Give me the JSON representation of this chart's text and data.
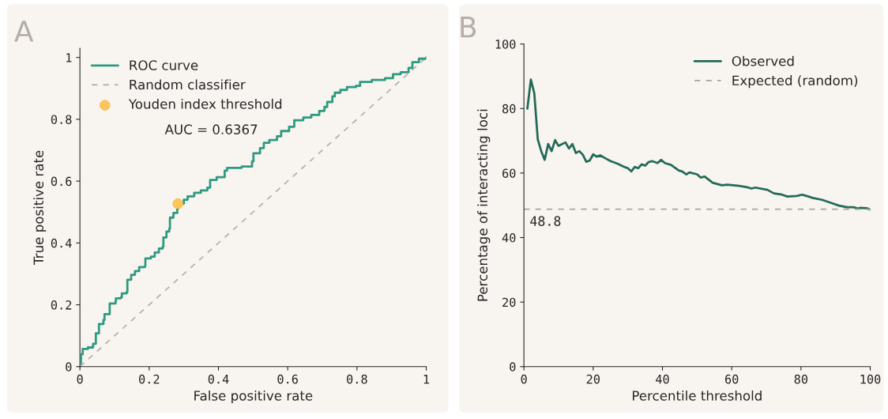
{
  "chart_data": [
    {
      "type": "step",
      "title": "A",
      "xlabel": "False positive rate",
      "ylabel": "True positive rate",
      "xlim": [
        0,
        1
      ],
      "ylim": [
        0,
        1.03
      ],
      "xticks": [
        0,
        0.2,
        0.4,
        0.6,
        0.8,
        1
      ],
      "yticks": [
        0,
        0.2,
        0.4,
        0.6,
        0.8,
        1
      ],
      "grid": false,
      "legend": "top left",
      "annotations": [
        "AUC = 0.6367"
      ],
      "series": [
        {
          "name": "ROC curve",
          "color": "#2e9a80",
          "line_style": "solid",
          "x": [
            0,
            0.003,
            0.008,
            0.023,
            0.038,
            0.046,
            0.055,
            0.068,
            0.071,
            0.083,
            0.086,
            0.103,
            0.104,
            0.118,
            0.121,
            0.135,
            0.137,
            0.148,
            0.159,
            0.171,
            0.188,
            0.189,
            0.205,
            0.216,
            0.228,
            0.239,
            0.241,
            0.25,
            0.258,
            0.26,
            0.27,
            0.281,
            0.283,
            0.3,
            0.311,
            0.33,
            0.349,
            0.368,
            0.376,
            0.395,
            0.418,
            0.425,
            0.467,
            0.497,
            0.501,
            0.52,
            0.531,
            0.547,
            0.569,
            0.581,
            0.604,
            0.619,
            0.645,
            0.668,
            0.691,
            0.706,
            0.714,
            0.729,
            0.736,
            0.752,
            0.771,
            0.797,
            0.809,
            0.843,
            0.881,
            0.904,
            0.926,
            0.949,
            0.96,
            0.979,
            1
          ],
          "values": [
            0.01,
            0.04,
            0.057,
            0.062,
            0.074,
            0.108,
            0.138,
            0.151,
            0.17,
            0.17,
            0.204,
            0.211,
            0.221,
            0.224,
            0.237,
            0.241,
            0.281,
            0.297,
            0.309,
            0.322,
            0.326,
            0.35,
            0.356,
            0.369,
            0.382,
            0.388,
            0.418,
            0.437,
            0.446,
            0.482,
            0.497,
            0.51,
            0.527,
            0.54,
            0.551,
            0.562,
            0.57,
            0.579,
            0.604,
            0.613,
            0.634,
            0.643,
            0.647,
            0.664,
            0.69,
            0.707,
            0.724,
            0.733,
            0.745,
            0.762,
            0.776,
            0.797,
            0.806,
            0.814,
            0.827,
            0.84,
            0.856,
            0.874,
            0.886,
            0.895,
            0.904,
            0.908,
            0.921,
            0.927,
            0.933,
            0.946,
            0.952,
            0.966,
            0.985,
            0.996,
            1
          ]
        },
        {
          "name": "Random classifier",
          "color": "#b8b3ad",
          "type": "line",
          "line_style": "dashed",
          "x": [
            0,
            1
          ],
          "values": [
            0,
            1
          ]
        },
        {
          "name": "Youden index threshold",
          "color": "#fcc65a",
          "type": "scatter",
          "marker": "circle",
          "x": [
            0.283
          ],
          "values": [
            0.527
          ]
        }
      ]
    },
    {
      "type": "line",
      "title": "B",
      "xlabel": "Percentile threshold",
      "ylabel": "Percentage of interacting loci",
      "xlim": [
        0,
        100
      ],
      "ylim": [
        0,
        100
      ],
      "xticks": [
        0,
        20,
        40,
        60,
        80,
        100
      ],
      "yticks": [
        0,
        20,
        40,
        60,
        80,
        100
      ],
      "grid": false,
      "legend": "top right",
      "annotations": [
        {
          "text": "48.8",
          "x": 1,
          "y": 48.8
        }
      ],
      "series": [
        {
          "name": "Observed",
          "color": "#236b58",
          "line_style": "solid",
          "x": [
            1,
            2,
            3,
            4,
            5,
            6,
            7,
            8,
            9,
            10,
            12,
            13,
            14,
            15,
            16,
            17,
            18,
            19,
            20,
            21,
            22,
            24,
            25,
            27,
            29,
            30,
            31,
            32,
            33,
            34,
            35,
            36,
            37,
            38.6,
            39.6,
            40.7,
            42.5,
            44.7,
            45.7,
            46.9,
            47.8,
            50,
            51,
            52.2,
            54.5,
            57.2,
            58.7,
            62.2,
            64.5,
            65.7,
            66.8,
            70.3,
            72.2,
            74.5,
            76.1,
            78.8,
            80.3,
            82.2,
            83.4,
            86.1,
            89.1,
            91,
            93.3,
            95.2,
            96.4,
            97.1,
            99,
            100
          ],
          "values": [
            80,
            89,
            84.7,
            70.4,
            66.8,
            64.1,
            69,
            66.8,
            70.2,
            68.4,
            69.5,
            67.6,
            69,
            66.2,
            66.8,
            65.7,
            63.5,
            63.9,
            65.8,
            65.1,
            65.5,
            64.3,
            63.7,
            62.9,
            61.9,
            61.5,
            60.5,
            61.9,
            61.5,
            62.7,
            62.3,
            63.4,
            63.7,
            63.1,
            64.1,
            63.1,
            62.5,
            60.8,
            60.5,
            59.6,
            60.2,
            59.6,
            58.6,
            58.9,
            57,
            56.2,
            56.4,
            56,
            55.6,
            55.2,
            55.5,
            54.8,
            53.7,
            53.3,
            52.7,
            52.9,
            53.3,
            52.7,
            52.3,
            51.7,
            50.6,
            49.9,
            49.4,
            49.4,
            49,
            49.2,
            49.1,
            48.7
          ]
        },
        {
          "name": "Expected (random)",
          "color": "#a9a39d",
          "type": "line",
          "line_style": "dashed",
          "x": [
            0,
            100
          ],
          "values": [
            48.8,
            48.8
          ]
        }
      ]
    }
  ]
}
